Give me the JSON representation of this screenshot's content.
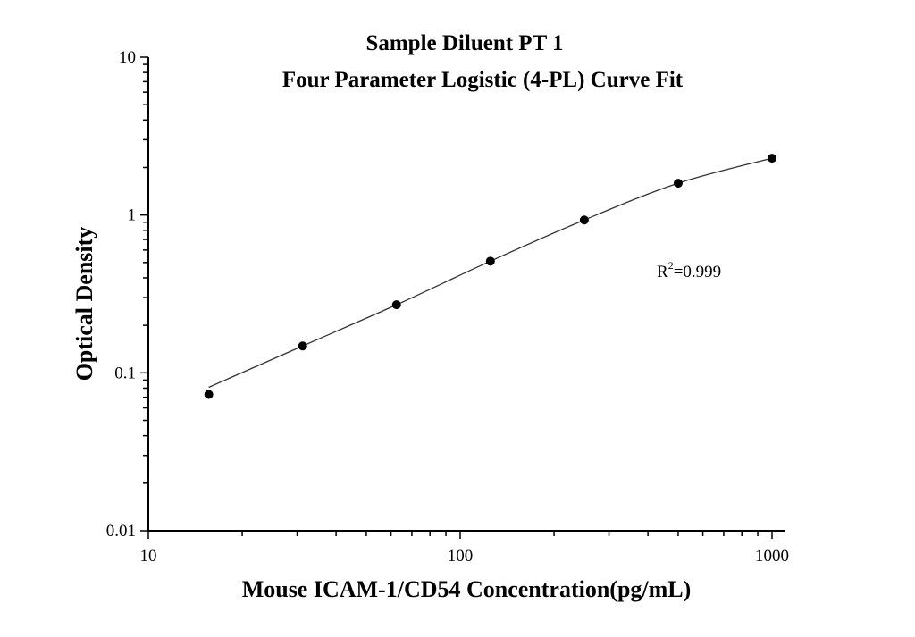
{
  "chart_data": {
    "type": "scatter",
    "title": "Sample Diluent PT 1",
    "subtitle": "Four Parameter Logistic (4-PL) Curve Fit",
    "xlabel": "Mouse ICAM-1/CD54 Concentration(pg/mL)",
    "ylabel": "Optical Density",
    "x_scale": "log",
    "y_scale": "log",
    "xlim": [
      10,
      1000
    ],
    "ylim": [
      0.01,
      10
    ],
    "x_ticks": [
      "10",
      "100",
      "1000"
    ],
    "y_ticks": [
      "0.01",
      "0.1",
      "1",
      "10"
    ],
    "grid": false,
    "annotation": {
      "text": "R",
      "sup": "2",
      "rest": "=0.999"
    },
    "series": [
      {
        "x": [
          15.625,
          31.25,
          62.5,
          125,
          250,
          500,
          1000
        ],
        "y": [
          0.073,
          0.148,
          0.27,
          0.51,
          0.93,
          1.59,
          2.29
        ],
        "marker": "circle",
        "fit": "4-PL curve",
        "color": "#000000"
      }
    ]
  }
}
